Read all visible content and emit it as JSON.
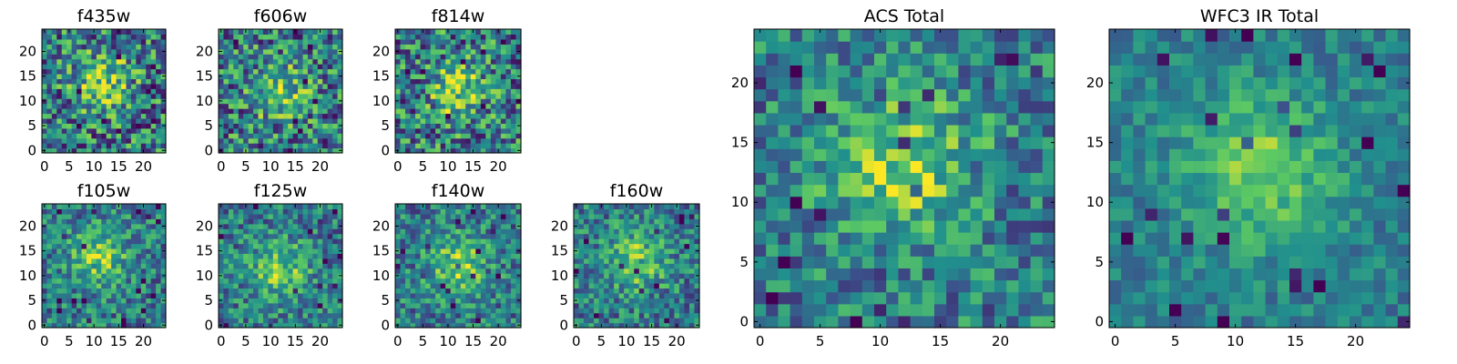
{
  "chart_data": [
    {
      "type": "heatmap",
      "title": "f435w",
      "x_ticks": [
        "0",
        "5",
        "10",
        "15",
        "20"
      ],
      "y_ticks": [
        "0",
        "5",
        "10",
        "15",
        "20"
      ],
      "grid_size": [
        25,
        25
      ],
      "peak_center": [
        12,
        14
      ],
      "noise_level": "high",
      "xlim": [
        -0.5,
        24.5
      ],
      "ylim": [
        -0.5,
        24.5
      ]
    },
    {
      "type": "heatmap",
      "title": "f606w",
      "x_ticks": [
        "0",
        "5",
        "10",
        "15",
        "20"
      ],
      "y_ticks": [
        "0",
        "5",
        "10",
        "15",
        "20"
      ],
      "grid_size": [
        25,
        25
      ],
      "peak_center": [
        12,
        12
      ],
      "noise_level": "high",
      "xlim": [
        -0.5,
        24.5
      ],
      "ylim": [
        -0.5,
        24.5
      ]
    },
    {
      "type": "heatmap",
      "title": "f814w",
      "x_ticks": [
        "0",
        "5",
        "10",
        "15",
        "20"
      ],
      "y_ticks": [
        "0",
        "5",
        "10",
        "15",
        "20"
      ],
      "grid_size": [
        25,
        25
      ],
      "peak_center": [
        12,
        12
      ],
      "noise_level": "high",
      "xlim": [
        -0.5,
        24.5
      ],
      "ylim": [
        -0.5,
        24.5
      ]
    },
    {
      "type": "heatmap",
      "title": "f105w",
      "x_ticks": [
        "0",
        "5",
        "10",
        "15",
        "20"
      ],
      "y_ticks": [
        "0",
        "5",
        "10",
        "15",
        "20"
      ],
      "grid_size": [
        25,
        25
      ],
      "peak_center": [
        11,
        14
      ],
      "noise_level": "medium",
      "xlim": [
        -0.5,
        24.5
      ],
      "ylim": [
        -0.5,
        24.5
      ]
    },
    {
      "type": "heatmap",
      "title": "f125w",
      "x_ticks": [
        "0",
        "5",
        "10",
        "15",
        "20"
      ],
      "y_ticks": [
        "0",
        "5",
        "10",
        "15",
        "20"
      ],
      "grid_size": [
        25,
        25
      ],
      "peak_center": [
        12,
        11
      ],
      "noise_level": "medium",
      "xlim": [
        -0.5,
        24.5
      ],
      "ylim": [
        -0.5,
        24.5
      ]
    },
    {
      "type": "heatmap",
      "title": "f140w",
      "x_ticks": [
        "0",
        "5",
        "10",
        "15",
        "20"
      ],
      "y_ticks": [
        "0",
        "5",
        "10",
        "15",
        "20"
      ],
      "grid_size": [
        25,
        25
      ],
      "peak_center": [
        12,
        12
      ],
      "noise_level": "medium",
      "xlim": [
        -0.5,
        24.5
      ],
      "ylim": [
        -0.5,
        24.5
      ]
    },
    {
      "type": "heatmap",
      "title": "f160w",
      "x_ticks": [
        "0",
        "5",
        "10",
        "15",
        "20"
      ],
      "y_ticks": [
        "0",
        "5",
        "10",
        "15",
        "20"
      ],
      "grid_size": [
        25,
        25
      ],
      "peak_center": [
        12,
        13
      ],
      "noise_level": "medium",
      "xlim": [
        -0.5,
        24.5
      ],
      "ylim": [
        -0.5,
        24.5
      ]
    },
    {
      "type": "heatmap",
      "title": "ACS Total",
      "x_ticks": [
        "0",
        "5",
        "10",
        "15",
        "20"
      ],
      "y_ticks": [
        "0",
        "5",
        "10",
        "15",
        "20"
      ],
      "grid_size": [
        25,
        25
      ],
      "peak_center": [
        12,
        13
      ],
      "noise_level": "medium",
      "xlim": [
        -0.5,
        24.5
      ],
      "ylim": [
        -0.5,
        24.5
      ]
    },
    {
      "type": "heatmap",
      "title": "WFC3 IR Total",
      "x_ticks": [
        "0",
        "5",
        "10",
        "15",
        "20"
      ],
      "y_ticks": [
        "0",
        "5",
        "10",
        "15",
        "20"
      ],
      "grid_size": [
        25,
        25
      ],
      "peak_center": [
        12,
        13
      ],
      "noise_level": "low",
      "xlim": [
        -0.5,
        24.5
      ],
      "ylim": [
        -0.5,
        24.5
      ]
    }
  ],
  "colormap": [
    "#440154",
    "#3b528b",
    "#21908d",
    "#5dc963",
    "#fde725"
  ],
  "colormap_name": "viridis"
}
